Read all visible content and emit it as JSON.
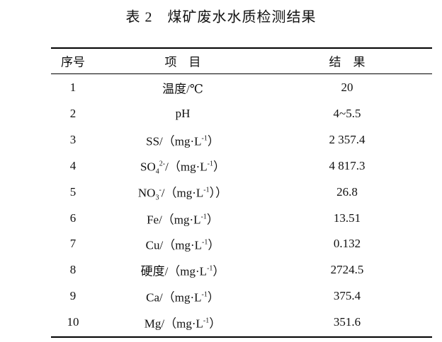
{
  "title": "表 2　煤矿废水水质检测结果",
  "table": {
    "header": [
      "序号",
      "项　目",
      "结　果"
    ],
    "rows": [
      {
        "no": "1",
        "item": [
          {
            "text": "温度/℃"
          }
        ],
        "result": "20"
      },
      {
        "no": "2",
        "item": [
          {
            "text": "pH"
          }
        ],
        "result": "4~5.5"
      },
      {
        "no": "3",
        "item": [
          {
            "text": "SS/（mg·L"
          },
          {
            "sup": "-1"
          },
          {
            "text": "）"
          }
        ],
        "result": "2 357.4"
      },
      {
        "no": "4",
        "item": [
          {
            "text": "SO"
          },
          {
            "sub": "4"
          },
          {
            "sup": "2-"
          },
          {
            "text": "/（mg·L"
          },
          {
            "sup": "-1"
          },
          {
            "text": "）"
          }
        ],
        "result": "4 817.3"
      },
      {
        "no": "5",
        "item": [
          {
            "text": "NO"
          },
          {
            "sub": "3"
          },
          {
            "sup": "-"
          },
          {
            "text": "/（mg·L"
          },
          {
            "sup": "-1"
          },
          {
            "text": "））"
          }
        ],
        "result": "26.8"
      },
      {
        "no": "6",
        "item": [
          {
            "text": "Fe/（mg·L"
          },
          {
            "sup": "-1"
          },
          {
            "text": "）"
          }
        ],
        "result": "13.51"
      },
      {
        "no": "7",
        "item": [
          {
            "text": "Cu/（mg·L"
          },
          {
            "sup": "-1"
          },
          {
            "text": "）"
          }
        ],
        "result": "0.132"
      },
      {
        "no": "8",
        "item": [
          {
            "text": "硬度/（mg·L"
          },
          {
            "sup": "-1"
          },
          {
            "text": "）"
          }
        ],
        "result": "2724.5"
      },
      {
        "no": "9",
        "item": [
          {
            "text": "Ca/（mg·L"
          },
          {
            "sup": "-1"
          },
          {
            "text": "）"
          }
        ],
        "result": "375.4"
      },
      {
        "no": "10",
        "item": [
          {
            "text": "Mg/（mg·L"
          },
          {
            "sup": "-1"
          },
          {
            "text": "）"
          }
        ],
        "result": "351.6"
      }
    ]
  }
}
